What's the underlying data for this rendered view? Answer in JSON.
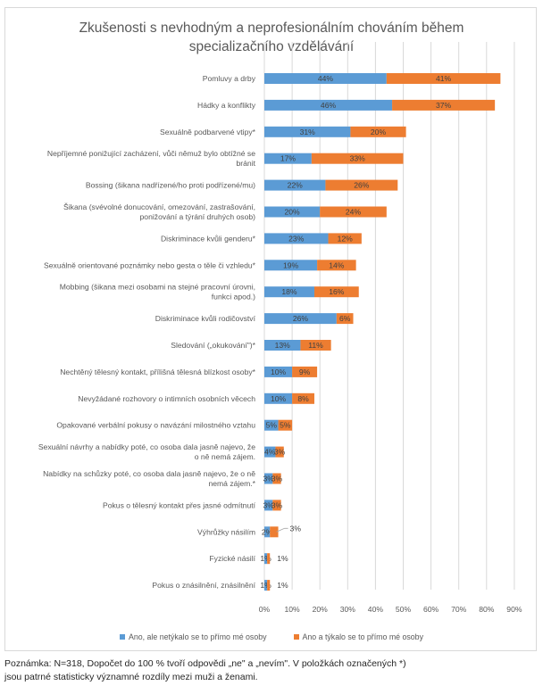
{
  "chart_data": {
    "type": "bar",
    "orientation": "horizontal",
    "stacked": true,
    "title": "Zkušenosti s nevhodným a neprofesionálním chováním  během specializačního vzdělávání",
    "title_lines": [
      "Zkušenosti s nevhodným a neprofesionálním chováním  během",
      "specializačního vzdělávání"
    ],
    "xlabel": "",
    "ylabel": "",
    "xlim": [
      0,
      90
    ],
    "x_ticks": [
      "0%",
      "10%",
      "20%",
      "30%",
      "40%",
      "50%",
      "60%",
      "70%",
      "80%",
      "90%"
    ],
    "grid": true,
    "legend_position": "bottom",
    "categories": [
      [
        "Pomluvy a drby"
      ],
      [
        "Hádky a konflikty"
      ],
      [
        "Sexuálně podbarvené vtipy*"
      ],
      [
        "Nepříjemné ponižující zacházení, vůči němuž bylo obtížné se",
        "bránit"
      ],
      [
        "Bossing (šikana nadřízené/ho proti podřízené/mu)"
      ],
      [
        "Šikana (svévolné donucování, omezování, zastrašování,",
        "ponižování a týrání druhých osob)"
      ],
      [
        "Diskriminace kvůli genderu*"
      ],
      [
        "Sexuálně orientované poznámky nebo gesta o těle či vzhledu*"
      ],
      [
        "Mobbing (šikana mezi osobami na stejné pracovní úrovni,",
        "funkci apod.)"
      ],
      [
        "Diskriminace kvůli rodičovství"
      ],
      [
        "Sledování („okukování\")*"
      ],
      [
        "Nechtěný tělesný kontakt, přílišná tělesná blízkost osoby*"
      ],
      [
        "Nevyžádané rozhovory o intimních osobních věcech"
      ],
      [
        "Opakované verbální pokusy o navázání milostného vztahu"
      ],
      [
        "Sexuální návrhy a nabídky poté, co osoba dala jasně najevo, že",
        "o ně nemá zájem."
      ],
      [
        "Nabídky na schůzky poté, co osoba dala jasně najevo, že o ně",
        "nemá zájem.*"
      ],
      [
        "Pokus o tělesný kontakt přes jasné odmítnutí"
      ],
      [
        "Výhrůžky násilím"
      ],
      [
        "Fyzické násilí"
      ],
      [
        "Pokus o znásilnění, znásilnění"
      ]
    ],
    "series": [
      {
        "name": "Ano, ale netýkalo se to přímo mé osoby",
        "color": "#5b9bd5",
        "values": [
          44,
          46,
          31,
          17,
          22,
          20,
          23,
          19,
          18,
          26,
          13,
          10,
          10,
          5,
          4,
          3,
          3,
          2,
          1,
          1
        ],
        "labels": [
          "44%",
          "46%",
          "31%",
          "17%",
          "22%",
          "20%",
          "23%",
          "19%",
          "18%",
          "26%",
          "13%",
          "10%",
          "10%",
          "5%",
          "4%",
          "3%",
          "3%",
          "2%",
          "1%",
          "1%"
        ]
      },
      {
        "name": "Ano a týkalo se to přímo mé osoby",
        "color": "#ed7d31",
        "values": [
          41,
          37,
          20,
          33,
          26,
          24,
          12,
          14,
          16,
          6,
          11,
          9,
          8,
          5,
          3,
          3,
          3,
          3,
          1,
          1
        ],
        "labels": [
          "41%",
          "37%",
          "20%",
          "33%",
          "26%",
          "24%",
          "12%",
          "14%",
          "16%",
          "6%",
          "11%",
          "9%",
          "8%",
          "5%",
          "3%",
          "3%",
          "3%",
          "3%",
          "1%",
          "1%"
        ]
      }
    ]
  },
  "note": {
    "line1": "Poznámka: N=318, Dopočet do 100 % tvoří odpovědi „ne\" a „nevím\". V položkách označených *)",
    "line2": "jsou patrné statisticky významné rozdíly mezi muži a ženami."
  }
}
